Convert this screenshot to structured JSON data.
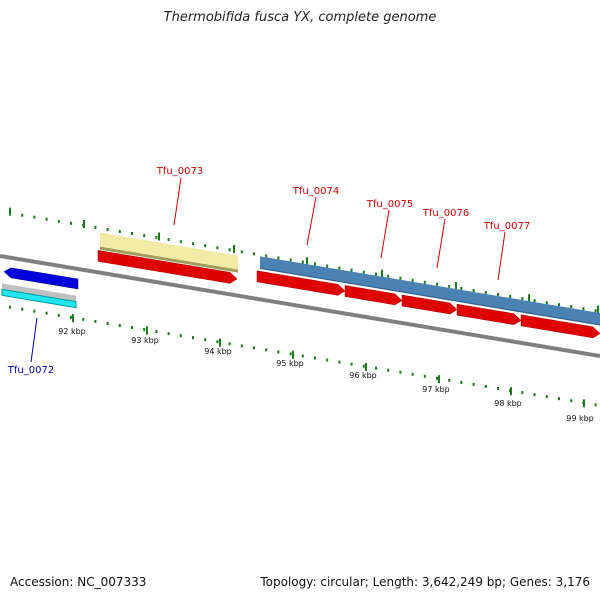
{
  "title": "Thermobifida fusca YX, complete genome",
  "footer": {
    "accession": "Accession: NC_007333",
    "summary": "Topology: circular; Length: 3,642,249 bp; Genes: 3,176"
  },
  "colors": {
    "background": "#ffffff",
    "backbone": "#7f7f7f",
    "tick": "#1a7a1a",
    "forward_label": "#cc0000",
    "reverse_label": "#0000aa",
    "cds_forward": "#e00000",
    "cds_reverse": "#0000dd",
    "gene_yellow": "#f3eaa6",
    "gene_steelblue": "#4a82b4",
    "gene_cyan": "#22e6ee",
    "gene_gray": "#c0c0c0"
  },
  "ticks": [
    "92 kbp",
    "93 kbp",
    "94 kbp",
    "95 kbp",
    "96 kbp",
    "97 kbp",
    "98 kbp",
    "99 kbp"
  ],
  "gene_labels": [
    "Tfu_0073",
    "Tfu_0074",
    "Tfu_0075",
    "Tfu_0076",
    "Tfu_0077",
    "Tfu_0072"
  ]
}
